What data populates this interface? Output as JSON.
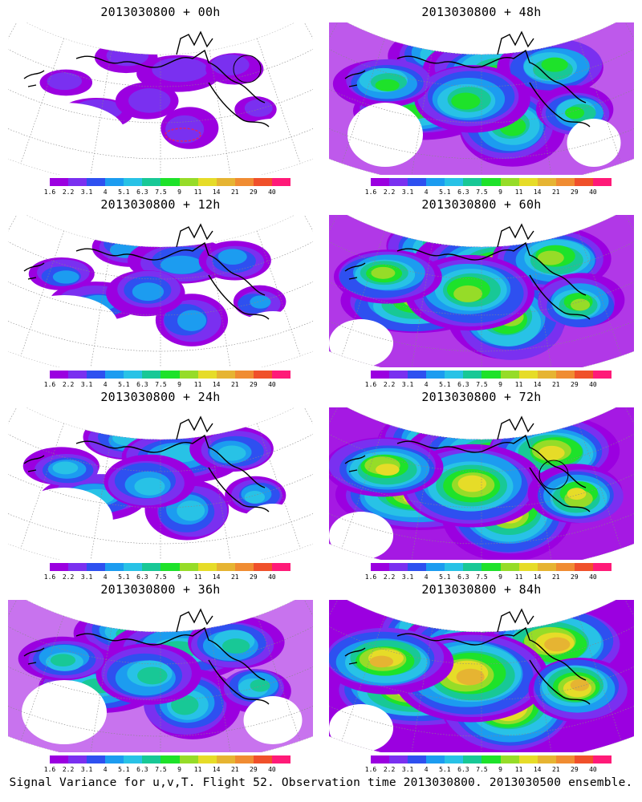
{
  "colors": {
    "scale": [
      "#9b00e0",
      "#7a30f0",
      "#2e50f0",
      "#1c9cf0",
      "#28c2e6",
      "#18c896",
      "#1ee22a",
      "#96dc28",
      "#e6dc28",
      "#e6b432",
      "#f08c32",
      "#f0502a",
      "#ff1a78"
    ]
  },
  "colorbar": {
    "labels": [
      "1.6",
      "2.2",
      "3.1",
      "4",
      "5.1",
      "6.3",
      "7.5",
      "9",
      "11",
      "14",
      "21",
      "29",
      "40"
    ]
  },
  "panels": [
    {
      "id": "p00",
      "title": "2013030800 + 00h",
      "intensity": 0.05,
      "marker": "circle-and-dashed"
    },
    {
      "id": "p48",
      "title": "2013030800 + 48h",
      "intensity": 0.55
    },
    {
      "id": "p12",
      "title": "2013030800 + 12h",
      "intensity": 0.2
    },
    {
      "id": "p60",
      "title": "2013030800 + 60h",
      "intensity": 0.68
    },
    {
      "id": "p24",
      "title": "2013030800 + 24h",
      "intensity": 0.32
    },
    {
      "id": "p72",
      "title": "2013030800 + 72h",
      "intensity": 0.8,
      "marker": "circle"
    },
    {
      "id": "p36",
      "title": "2013030800 + 36h",
      "intensity": 0.45
    },
    {
      "id": "p84",
      "title": "2013030800 + 84h",
      "intensity": 0.92
    }
  ],
  "footer": {
    "caption": "Signal Variance for u,v,T. Flight 52. Observation time 2013030800. 2013030500 ensemble."
  }
}
